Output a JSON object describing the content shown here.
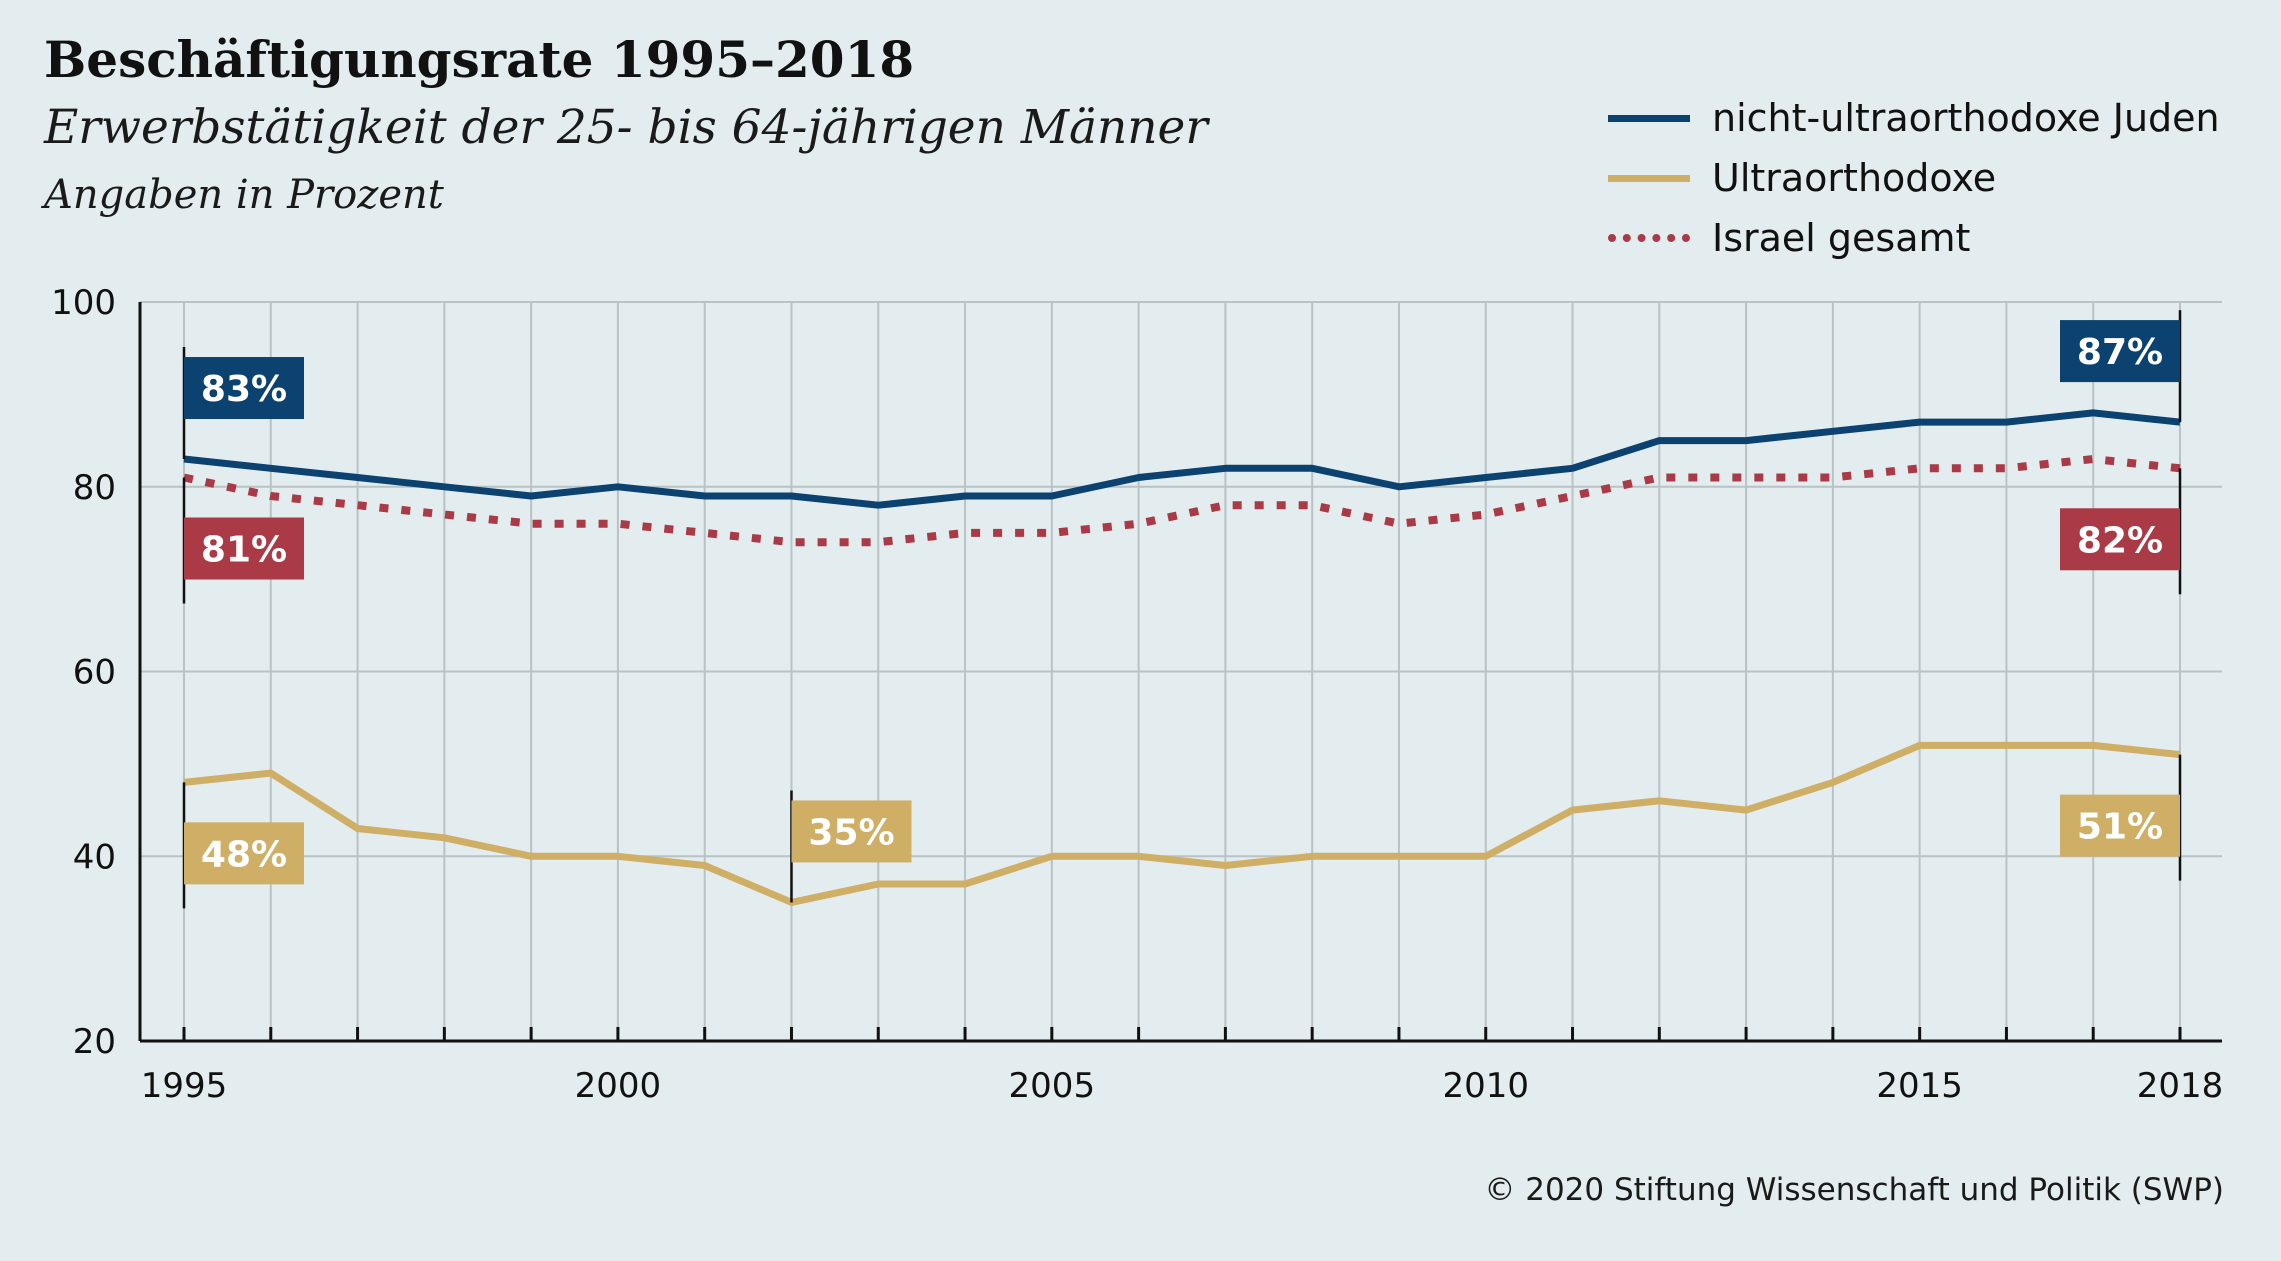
{
  "title": "Beschäftigungsrate 1995–2018",
  "subtitle": "Erwerbstätigkeit der 25- bis 64-jährigen Männer",
  "unit_label": "Angaben in Prozent",
  "credit": "© 2020 Stiftung Wissenschaft und Politik (SWP)",
  "legend": [
    {
      "label": "nicht-ultraorthodoxe Juden",
      "color": "#0b426f",
      "style": "solid"
    },
    {
      "label": "Ultraorthodoxe",
      "color": "#cfae66",
      "style": "solid"
    },
    {
      "label": "Israel gesamt",
      "color": "#a93a46",
      "style": "dotted"
    }
  ],
  "chart_data": {
    "type": "line",
    "title": "Beschäftigungsrate 1995–2018",
    "subtitle": "Erwerbstätigkeit der 25- bis 64-jährigen Männer",
    "ylabel": "Angaben in Prozent",
    "xlim": [
      1995,
      2018
    ],
    "ylim": [
      20,
      100
    ],
    "yticks": [
      20,
      40,
      60,
      80,
      100
    ],
    "xticks": [
      1995,
      2000,
      2005,
      2010,
      2015,
      2018
    ],
    "grid": true,
    "legend_position": "top-right",
    "x": [
      1995,
      1996,
      1997,
      1998,
      1999,
      2000,
      2001,
      2002,
      2003,
      2004,
      2005,
      2006,
      2007,
      2008,
      2009,
      2010,
      2011,
      2012,
      2013,
      2014,
      2015,
      2016,
      2017,
      2018
    ],
    "series": [
      {
        "name": "nicht-ultraorthodoxe Juden",
        "color": "#0b426f",
        "style": "solid",
        "values": [
          83,
          82,
          81,
          80,
          79,
          80,
          79,
          79,
          78,
          79,
          79,
          81,
          82,
          82,
          80,
          81,
          82,
          85,
          85,
          86,
          87,
          87,
          88,
          87
        ]
      },
      {
        "name": "Ultraorthodoxe",
        "color": "#cfae66",
        "style": "solid",
        "values": [
          48,
          49,
          43,
          42,
          40,
          40,
          39,
          35,
          37,
          37,
          40,
          40,
          39,
          40,
          40,
          40,
          45,
          46,
          45,
          48,
          52,
          52,
          52,
          51
        ]
      },
      {
        "name": "Israel gesamt",
        "color": "#a93a46",
        "style": "dotted",
        "values": [
          81,
          79,
          78,
          77,
          76,
          76,
          75,
          74,
          74,
          75,
          75,
          76,
          78,
          78,
          76,
          77,
          79,
          81,
          81,
          81,
          82,
          82,
          83,
          82
        ]
      }
    ],
    "annotations": [
      {
        "text": "83%",
        "x": 1995,
        "y": 83,
        "series": "nicht-ultraorthodoxe Juden",
        "placement": "above"
      },
      {
        "text": "81%",
        "x": 1995,
        "y": 81,
        "series": "Israel gesamt",
        "placement": "below"
      },
      {
        "text": "48%",
        "x": 1995,
        "y": 48,
        "series": "Ultraorthodoxe",
        "placement": "below"
      },
      {
        "text": "35%",
        "x": 2002,
        "y": 35,
        "series": "Ultraorthodoxe",
        "placement": "above"
      },
      {
        "text": "87%",
        "x": 2018,
        "y": 87,
        "series": "nicht-ultraorthodoxe Juden",
        "placement": "above"
      },
      {
        "text": "82%",
        "x": 2018,
        "y": 82,
        "series": "Israel gesamt",
        "placement": "below"
      },
      {
        "text": "51%",
        "x": 2018,
        "y": 51,
        "series": "Ultraorthodoxe",
        "placement": "below"
      }
    ]
  }
}
